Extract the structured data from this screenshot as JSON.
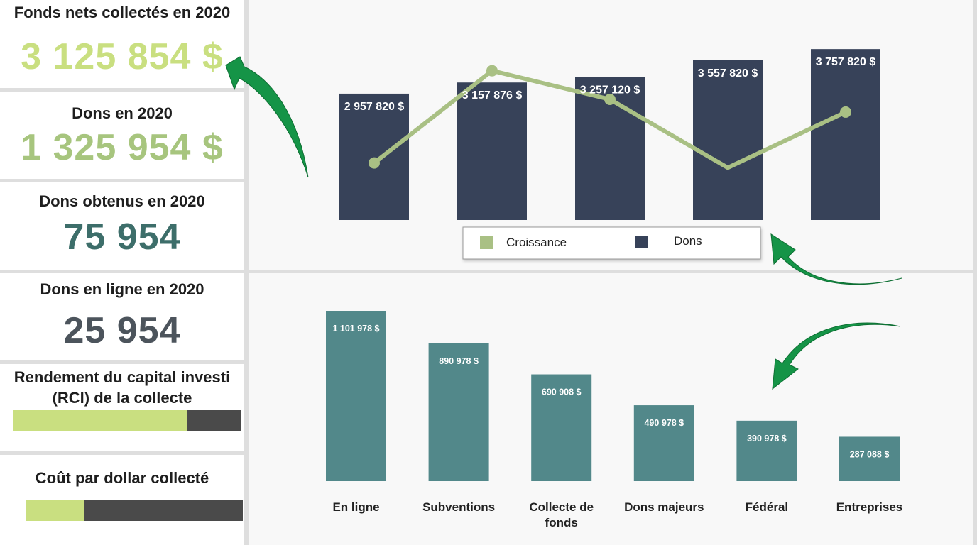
{
  "kpis": {
    "net_funds": {
      "title": "Fonds nets collectés en 2020",
      "value": "3 125 854 $",
      "color": "#c9df80"
    },
    "donations_value": {
      "title": "Dons en 2020",
      "value": "1 325 954 $",
      "color": "#a7c57e"
    },
    "donations_count": {
      "title": "Dons obtenus en 2020",
      "value": "75 954",
      "color": "#3d6e6a"
    },
    "online_donations": {
      "title": "Dons en ligne en 2020",
      "value": "25 954",
      "color": "#4c545c"
    },
    "roi": {
      "title_line1": "Rendement du capital investi",
      "title_line2": "(RCI) de la collecte",
      "progress": 0.76
    },
    "cost_per_dollar": {
      "title": "Coût par dollar collecté",
      "progress": 0.27
    }
  },
  "colors": {
    "dons": "#374259",
    "croissance": "#a9c084",
    "sources": "#52888a",
    "arrow": "#159447"
  },
  "chart_data": [
    {
      "type": "bar",
      "categories": [
        "",
        "",
        "",
        "",
        ""
      ],
      "series": [
        {
          "name": "Dons",
          "values": [
            2957820,
            3157876,
            3257120,
            3557820,
            3757820
          ],
          "labels": [
            "2 957 820 $",
            "3 157 876 $",
            "3 257 120 $",
            "3 557 820 $",
            "3 757 820 $"
          ]
        },
        {
          "name": "Croissance",
          "type": "line",
          "values": [
            1.0,
            6.8,
            5.0,
            0.7,
            4.2
          ]
        }
      ],
      "legend": [
        "Croissance",
        "Dons"
      ],
      "legend_position": "bottom"
    },
    {
      "type": "bar",
      "categories": [
        "En ligne",
        "Subventions",
        "Collecte de fonds",
        "Dons majeurs",
        "Fédéral",
        "Entreprises"
      ],
      "category_lines": [
        [
          "En ligne"
        ],
        [
          "Subventions"
        ],
        [
          "Collecte de",
          "fonds"
        ],
        [
          "Dons majeurs"
        ],
        [
          "Fédéral"
        ],
        [
          "Entreprises"
        ]
      ],
      "values": [
        1101978,
        890978,
        690908,
        490978,
        390978,
        287088
      ],
      "labels": [
        "1 101 978 $",
        "890 978 $",
        "690 908 $",
        "490 978 $",
        "390 978 $",
        "287 088 $"
      ]
    }
  ]
}
